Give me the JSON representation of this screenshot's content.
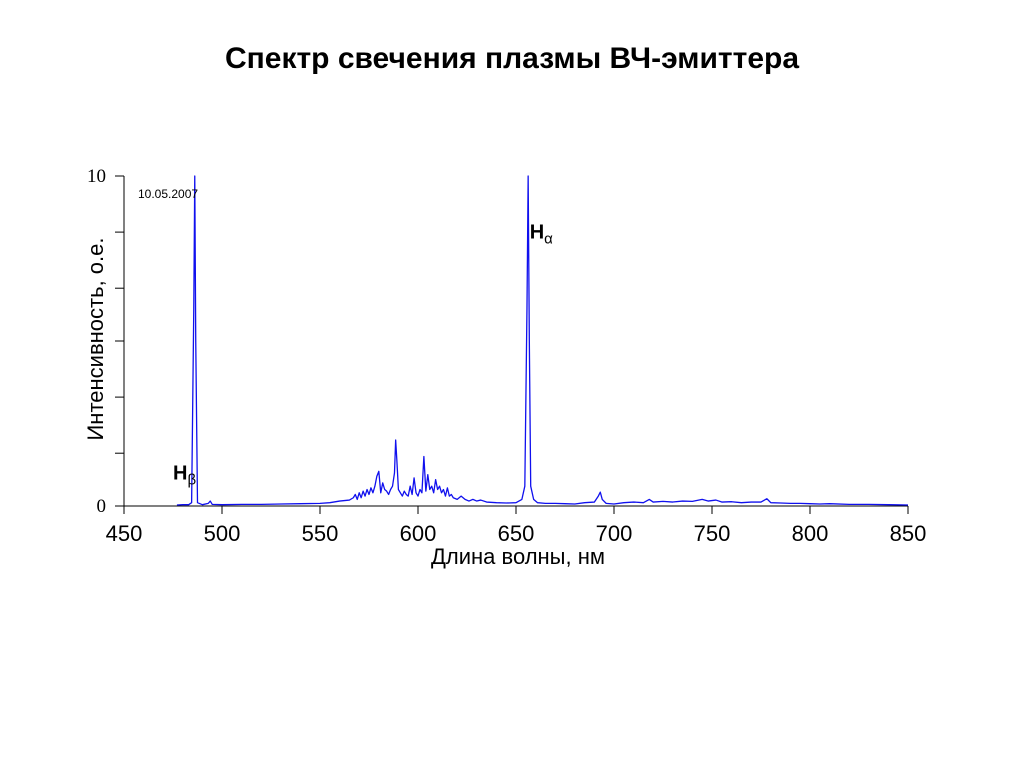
{
  "slide": {
    "title": "Спектр свечения плазмы ВЧ-эмиттера"
  },
  "chart_data": {
    "type": "line",
    "xlabel": "Длина волны, нм",
    "ylabel": "Интенсивность, о.е.",
    "xlim": [
      450,
      850
    ],
    "ylim": [
      0,
      10
    ],
    "x_ticks": [
      "450",
      "500",
      "550",
      "600",
      "650",
      "700",
      "750",
      "800",
      "850"
    ],
    "y_tick_labels": [
      {
        "value": 0,
        "label": "0"
      },
      {
        "value": 10,
        "label": "10"
      }
    ],
    "y_minor_ticks": [
      1.6,
      3.3,
      5,
      6.6,
      8.3
    ],
    "date_annotation": "10.05.2007",
    "grid": false,
    "line_color": "#1010ee",
    "annotations": [
      {
        "base": "H",
        "sub": "β",
        "x": 475,
        "y": 0.8
      },
      {
        "base": "H",
        "sub": "α",
        "x": 657,
        "y": 8.1
      }
    ],
    "series": [
      {
        "points": [
          [
            477,
            0.03
          ],
          [
            480,
            0.04
          ],
          [
            483,
            0.04
          ],
          [
            484.5,
            0.1
          ],
          [
            485.6,
            6
          ],
          [
            486.1,
            10
          ],
          [
            486.6,
            5
          ],
          [
            487.5,
            0.1
          ],
          [
            490,
            0.04
          ],
          [
            493,
            0.08
          ],
          [
            494,
            0.15
          ],
          [
            495,
            0.05
          ],
          [
            500,
            0.04
          ],
          [
            510,
            0.05
          ],
          [
            520,
            0.05
          ],
          [
            530,
            0.06
          ],
          [
            540,
            0.07
          ],
          [
            550,
            0.08
          ],
          [
            555,
            0.1
          ],
          [
            560,
            0.15
          ],
          [
            565,
            0.18
          ],
          [
            567,
            0.25
          ],
          [
            568,
            0.35
          ],
          [
            569,
            0.2
          ],
          [
            570,
            0.4
          ],
          [
            571,
            0.25
          ],
          [
            572,
            0.45
          ],
          [
            573,
            0.3
          ],
          [
            574,
            0.5
          ],
          [
            575,
            0.35
          ],
          [
            576,
            0.55
          ],
          [
            577,
            0.4
          ],
          [
            578,
            0.6
          ],
          [
            579,
            0.9
          ],
          [
            580,
            1.05
          ],
          [
            581,
            0.4
          ],
          [
            582,
            0.7
          ],
          [
            583,
            0.5
          ],
          [
            584,
            0.45
          ],
          [
            585,
            0.35
          ],
          [
            586,
            0.5
          ],
          [
            587,
            0.6
          ],
          [
            588,
            1.0
          ],
          [
            588.6,
            2.0
          ],
          [
            589.2,
            1.4
          ],
          [
            590,
            0.5
          ],
          [
            591,
            0.4
          ],
          [
            592,
            0.3
          ],
          [
            593,
            0.45
          ],
          [
            594,
            0.35
          ],
          [
            595,
            0.3
          ],
          [
            596,
            0.6
          ],
          [
            597,
            0.35
          ],
          [
            598,
            0.85
          ],
          [
            599,
            0.4
          ],
          [
            600,
            0.3
          ],
          [
            601,
            0.5
          ],
          [
            602,
            0.4
          ],
          [
            603,
            1.5
          ],
          [
            604,
            0.45
          ],
          [
            605,
            0.95
          ],
          [
            606,
            0.5
          ],
          [
            607,
            0.6
          ],
          [
            608,
            0.4
          ],
          [
            609,
            0.8
          ],
          [
            610,
            0.5
          ],
          [
            611,
            0.6
          ],
          [
            612,
            0.4
          ],
          [
            613,
            0.5
          ],
          [
            614,
            0.3
          ],
          [
            615,
            0.55
          ],
          [
            616,
            0.3
          ],
          [
            617,
            0.35
          ],
          [
            618,
            0.25
          ],
          [
            620,
            0.2
          ],
          [
            622,
            0.3
          ],
          [
            624,
            0.2
          ],
          [
            626,
            0.15
          ],
          [
            628,
            0.2
          ],
          [
            630,
            0.15
          ],
          [
            632,
            0.18
          ],
          [
            635,
            0.12
          ],
          [
            640,
            0.1
          ],
          [
            645,
            0.09
          ],
          [
            650,
            0.1
          ],
          [
            653,
            0.2
          ],
          [
            654.5,
            0.6
          ],
          [
            655.6,
            6
          ],
          [
            656.2,
            10
          ],
          [
            656.8,
            5
          ],
          [
            657.5,
            0.6
          ],
          [
            659,
            0.2
          ],
          [
            661,
            0.1
          ],
          [
            665,
            0.08
          ],
          [
            670,
            0.08
          ],
          [
            675,
            0.07
          ],
          [
            680,
            0.06
          ],
          [
            685,
            0.1
          ],
          [
            690,
            0.12
          ],
          [
            692,
            0.3
          ],
          [
            693,
            0.42
          ],
          [
            694,
            0.2
          ],
          [
            696,
            0.08
          ],
          [
            700,
            0.06
          ],
          [
            705,
            0.1
          ],
          [
            710,
            0.12
          ],
          [
            715,
            0.1
          ],
          [
            718,
            0.2
          ],
          [
            720,
            0.12
          ],
          [
            725,
            0.14
          ],
          [
            730,
            0.12
          ],
          [
            735,
            0.15
          ],
          [
            740,
            0.14
          ],
          [
            745,
            0.2
          ],
          [
            748,
            0.15
          ],
          [
            752,
            0.18
          ],
          [
            755,
            0.12
          ],
          [
            760,
            0.13
          ],
          [
            765,
            0.1
          ],
          [
            770,
            0.12
          ],
          [
            775,
            0.12
          ],
          [
            778,
            0.22
          ],
          [
            780,
            0.1
          ],
          [
            785,
            0.09
          ],
          [
            790,
            0.08
          ],
          [
            795,
            0.08
          ],
          [
            800,
            0.07
          ],
          [
            805,
            0.06
          ],
          [
            810,
            0.07
          ],
          [
            820,
            0.05
          ],
          [
            830,
            0.05
          ],
          [
            840,
            0.04
          ],
          [
            850,
            0.03
          ]
        ]
      }
    ]
  }
}
